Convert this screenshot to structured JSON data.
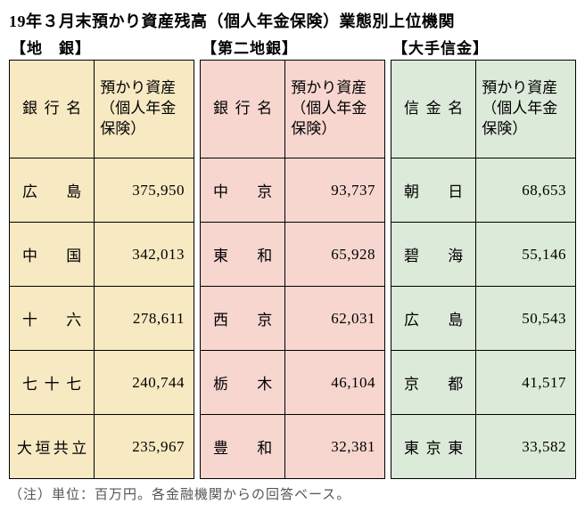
{
  "title": "19年３月末預かり資産残高（個人年金保険）業態別上位機関",
  "footnote": "（注）単位：百万円。各金融機関からの回答ベース。",
  "panels": [
    {
      "subtitle": "【地　銀】",
      "bg": "#f7e9c2",
      "name_header": "銀行名",
      "value_header": "預かり資産（個人年金保険）",
      "rows": [
        {
          "name": "広島",
          "value": "375,950"
        },
        {
          "name": "中国",
          "value": "342,013"
        },
        {
          "name": "十六",
          "value": "278,611"
        },
        {
          "name": "七十七",
          "value": "240,744"
        },
        {
          "name": "大垣共立",
          "value": "235,967",
          "tight": true
        }
      ]
    },
    {
      "subtitle": "【第二地銀】",
      "bg": "#f6d6cf",
      "name_header": "銀行名",
      "value_header": "預かり資産（個人年金保険）",
      "rows": [
        {
          "name": "中京",
          "value": "93,737"
        },
        {
          "name": "東和",
          "value": "65,928"
        },
        {
          "name": "西京",
          "value": "62,031"
        },
        {
          "name": "栃木",
          "value": "46,104"
        },
        {
          "name": "豊和",
          "value": "32,381"
        }
      ]
    },
    {
      "subtitle": "【大手信金】",
      "bg": "#dcead9",
      "name_header": "信金名",
      "value_header": "預かり資産（個人年金保険）",
      "rows": [
        {
          "name": "朝日",
          "value": "68,653"
        },
        {
          "name": "碧海",
          "value": "55,146"
        },
        {
          "name": "広島",
          "value": "50,543"
        },
        {
          "name": "京都",
          "value": "41,517"
        },
        {
          "name": "東京東",
          "value": "33,582"
        }
      ]
    }
  ]
}
